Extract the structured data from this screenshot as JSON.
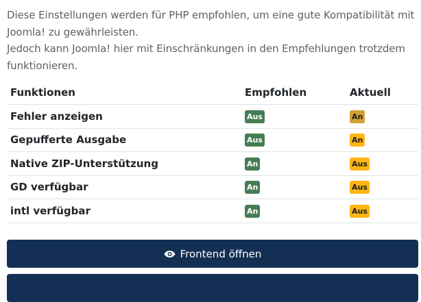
{
  "intro": {
    "line1": "Diese Einstellungen werden für PHP empfohlen, um eine gute Kompatibilität mit Joomla! zu gewährleisten.",
    "line2": "Jedoch kann Joomla! hier mit Einschränkungen in den Empfehlungen trotzdem funktionieren."
  },
  "table": {
    "headers": {
      "feature": "Funktionen",
      "recommended": "Empfohlen",
      "current": "Aktuell"
    },
    "rows": [
      {
        "name": "Fehler anzeigen",
        "recommended": "Aus",
        "current": "An"
      },
      {
        "name": "Gepufferte Ausgabe",
        "recommended": "Aus",
        "current": "An"
      },
      {
        "name": "Native ZIP-Unterstützung",
        "recommended": "An",
        "current": "Aus"
      },
      {
        "name": "GD verfügbar",
        "recommended": "An",
        "current": "Aus"
      },
      {
        "name": "intl verfügbar",
        "recommended": "An",
        "current": "Aus"
      }
    ]
  },
  "buttons": {
    "frontend_label": "Frontend öffnen",
    "frontend_icon": "eye-icon"
  },
  "colors": {
    "badge_ok": "#457d54",
    "badge_warn": "#ffb514",
    "button_bg": "#132f53"
  }
}
